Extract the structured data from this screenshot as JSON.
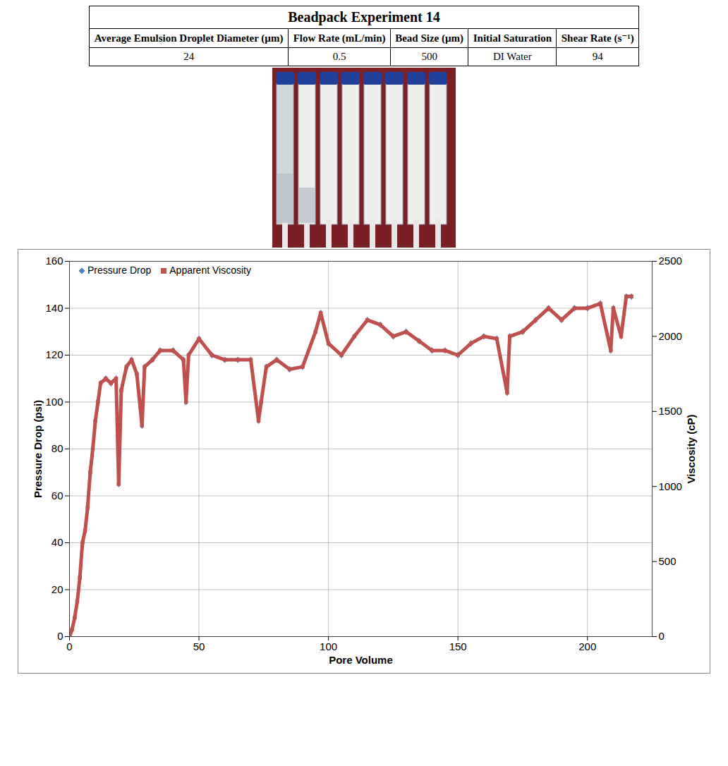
{
  "table": {
    "title": "Beadpack Experiment 14",
    "columns": [
      "Average Emulsion Droplet Diameter (µm)",
      "Flow Rate (mL/min)",
      "Bead Size (µm)",
      "Initial Saturation",
      "Shear Rate (s⁻¹)"
    ],
    "rows": [
      [
        24,
        0.5,
        500,
        "DI Water",
        94
      ]
    ]
  },
  "chart_data": {
    "type": "line",
    "xlabel": "Pore Volume",
    "ylabel": "Pressure Drop (psi)",
    "y2label": "Viscosity (cP)",
    "x": [
      0,
      1,
      2,
      3,
      4,
      5,
      6,
      7,
      8,
      9,
      10,
      11,
      12,
      14,
      16,
      18,
      19,
      20,
      22,
      24,
      26,
      28,
      29,
      32,
      35,
      40,
      44,
      45,
      46,
      50,
      55,
      60,
      65,
      70,
      73,
      74,
      76,
      80,
      85,
      90,
      95,
      97,
      100,
      105,
      110,
      115,
      120,
      125,
      130,
      135,
      140,
      145,
      150,
      155,
      160,
      165,
      169,
      170,
      175,
      180,
      185,
      190,
      195,
      200,
      205,
      209,
      210,
      213,
      215,
      217
    ],
    "series": [
      {
        "name": "Pressure Drop",
        "color": "#4f81bd",
        "marker": "diamond",
        "values": [
          0,
          3,
          8,
          15,
          25,
          40,
          45,
          55,
          70,
          80,
          92,
          100,
          108,
          110,
          108,
          110,
          65,
          105,
          115,
          118,
          112,
          90,
          115,
          118,
          122,
          122,
          118,
          100,
          120,
          127,
          120,
          118,
          118,
          118,
          92,
          100,
          115,
          118,
          114,
          115,
          130,
          138,
          125,
          120,
          128,
          135,
          133,
          128,
          130,
          126,
          122,
          122,
          120,
          125,
          128,
          127,
          104,
          128,
          130,
          135,
          140,
          135,
          140,
          140,
          142,
          122,
          140,
          128,
          145,
          145
        ]
      },
      {
        "name": "Apparent Viscosity",
        "color": "#c0504d",
        "marker": "square",
        "line_style": "solid",
        "axis": "y2",
        "values": [
          0,
          47,
          125,
          234,
          391,
          625,
          703,
          859,
          1094,
          1250,
          1438,
          1563,
          1688,
          1719,
          1688,
          1719,
          1016,
          1641,
          1797,
          1844,
          1750,
          1406,
          1797,
          1844,
          1906,
          1906,
          1844,
          1563,
          1875,
          1984,
          1875,
          1844,
          1844,
          1844,
          1438,
          1563,
          1797,
          1844,
          1781,
          1797,
          2031,
          2156,
          1953,
          1875,
          2000,
          2109,
          2078,
          2000,
          2031,
          1969,
          1906,
          1906,
          1875,
          1953,
          2000,
          1984,
          1625,
          2000,
          2031,
          2109,
          2188,
          2109,
          2188,
          2188,
          2219,
          1906,
          2188,
          2000,
          2266,
          2266
        ]
      }
    ],
    "xlim": [
      0,
      225
    ],
    "xticks": [
      0,
      50,
      100,
      150,
      200
    ],
    "ylim": [
      0,
      160
    ],
    "yticks": [
      0,
      20,
      40,
      60,
      80,
      100,
      120,
      140,
      160
    ],
    "y2lim": [
      0,
      2500
    ],
    "y2ticks": [
      0,
      500,
      1000,
      1500,
      2000,
      2500
    ],
    "grid": true,
    "legend": "top-left"
  }
}
